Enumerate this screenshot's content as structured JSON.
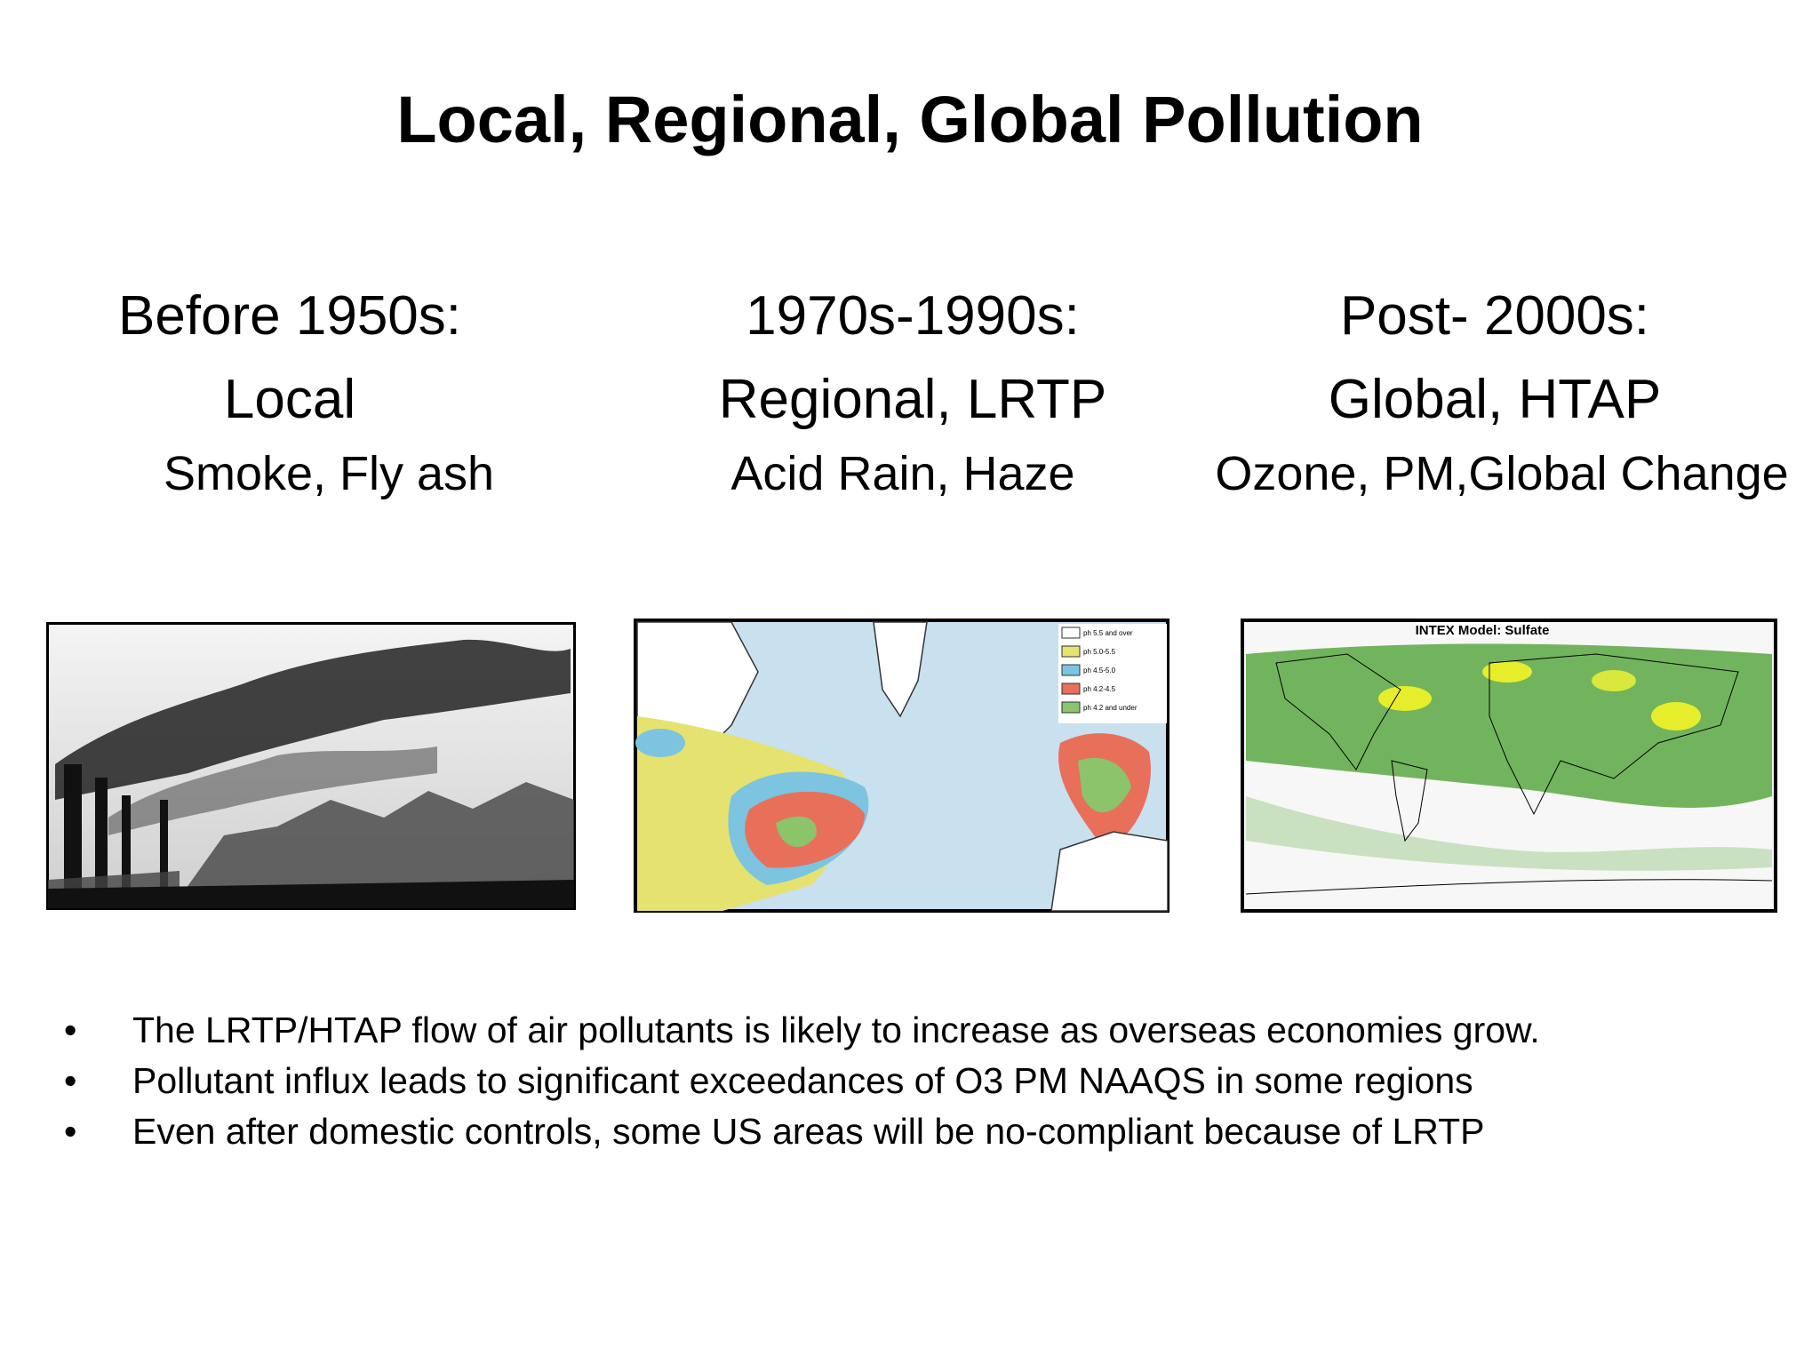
{
  "header": {
    "title": "Local, Regional, Global Pollution"
  },
  "columns": [
    {
      "heading": "Before 1950s:",
      "subheading": "Local",
      "caption": "Smoke, Fly ash"
    },
    {
      "heading": "1970s-1990s:",
      "subheading": "Regional, LRTP",
      "caption": "Acid Rain, Haze",
      "legend": [
        "ph 5.5 and over",
        "ph 5.0-5.5",
        "ph 4.5-5.0",
        "ph 4.2-4.5",
        "ph 4.2 and under"
      ]
    },
    {
      "heading": "Post- 2000s:",
      "subheading": "Global, HTAP",
      "caption": "Ozone, PM,Global Change",
      "image_title": "INTEX Model: Sulfate"
    }
  ],
  "bullets": [
    "The LRTP/HTAP flow of air pollutants is likely to increase as overseas economies grow.",
    "Pollutant influx leads to significant exceedances of O3 PM NAAQS in some regions",
    "Even after domestic controls, some US areas will be no-compliant because of LRTP"
  ]
}
